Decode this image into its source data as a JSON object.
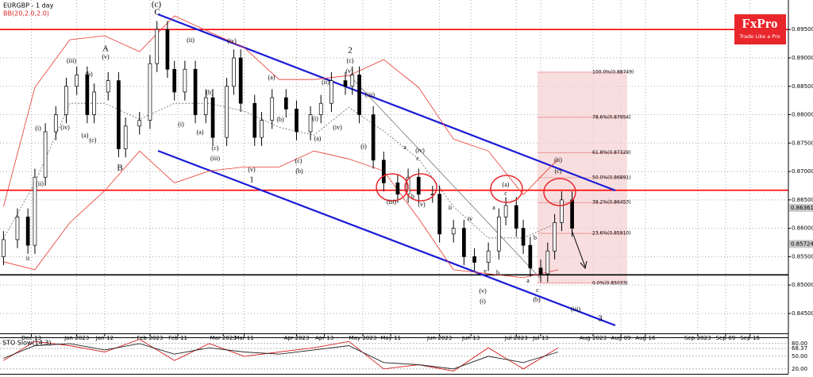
{
  "logo": {
    "brand": "FxPro",
    "tagline": "Trade Like a Pro"
  },
  "chart_data": [
    {
      "type": "candlestick",
      "title": "EURGBP - 1 day",
      "indicator": "BB(20,2.0,2.0)",
      "x": [
        1,
        5,
        8,
        10,
        13,
        16,
        19,
        22,
        25,
        27,
        31,
        34,
        36,
        40,
        43,
        45,
        48,
        50,
        53,
        56,
        59,
        61,
        65,
        67,
        69,
        73,
        75,
        78,
        82,
        85,
        89,
        92,
        95,
        99,
        101,
        103,
        107,
        110,
        114,
        117,
        120,
        124,
        126,
        130,
        133,
        136,
        140,
        143,
        145,
        148,
        150,
        152,
        155,
        157,
        159,
        161,
        164
      ],
      "open": [
        0.855,
        0.858,
        0.862,
        0.857,
        0.869,
        0.877,
        0.88,
        0.885,
        0.887,
        0.88,
        0.884,
        0.886,
        0.874,
        0.878,
        0.879,
        0.889,
        0.895,
        0.888,
        0.884,
        0.888,
        0.88,
        0.883,
        0.876,
        0.885,
        0.89,
        0.882,
        0.876,
        0.879,
        0.883,
        0.881,
        0.877,
        0.88,
        0.882,
        0.886,
        0.885,
        0.887,
        0.88,
        0.872,
        0.868,
        0.866,
        0.869,
        0.866,
        0.866,
        0.859,
        0.86,
        0.855,
        0.854,
        0.856,
        0.862,
        0.864,
        0.86,
        0.857,
        0.853,
        0.852,
        0.856,
        0.861,
        0.865
      ],
      "high": [
        0.8595,
        0.8635,
        0.8635,
        0.8705,
        0.8785,
        0.8815,
        0.8865,
        0.8885,
        0.8885,
        0.8855,
        0.8875,
        0.8875,
        0.8795,
        0.8805,
        0.8905,
        0.8965,
        0.8965,
        0.8895,
        0.8895,
        0.8895,
        0.8845,
        0.8845,
        0.8865,
        0.8915,
        0.8915,
        0.8835,
        0.8805,
        0.8845,
        0.8845,
        0.8825,
        0.8815,
        0.8835,
        0.8875,
        0.8875,
        0.8885,
        0.8885,
        0.8815,
        0.8735,
        0.8695,
        0.8705,
        0.8705,
        0.8675,
        0.8675,
        0.8615,
        0.8615,
        0.8565,
        0.8575,
        0.8635,
        0.8655,
        0.8655,
        0.8615,
        0.8585,
        0.8545,
        0.8575,
        0.8625,
        0.8665,
        0.8665
      ],
      "low": [
        0.8535,
        0.8565,
        0.8555,
        0.8555,
        0.8675,
        0.8755,
        0.8785,
        0.8835,
        0.8785,
        0.8785,
        0.8825,
        0.8725,
        0.8725,
        0.8765,
        0.8775,
        0.8875,
        0.8865,
        0.8825,
        0.8825,
        0.8785,
        0.8785,
        0.8745,
        0.8745,
        0.8835,
        0.8805,
        0.8745,
        0.8745,
        0.8775,
        0.8795,
        0.8755,
        0.8755,
        0.8785,
        0.8805,
        0.8835,
        0.8835,
        0.8785,
        0.8705,
        0.8665,
        0.8645,
        0.8645,
        0.8645,
        0.8645,
        0.8575,
        0.8575,
        0.8535,
        0.8525,
        0.8525,
        0.8545,
        0.8605,
        0.8585,
        0.8555,
        0.8515,
        0.8505,
        0.8505,
        0.8545,
        0.8595,
        0.8585
      ],
      "close": [
        0.858,
        0.862,
        0.857,
        0.869,
        0.877,
        0.88,
        0.885,
        0.887,
        0.88,
        0.884,
        0.886,
        0.874,
        0.878,
        0.879,
        0.889,
        0.895,
        0.888,
        0.884,
        0.888,
        0.88,
        0.883,
        0.876,
        0.885,
        0.89,
        0.882,
        0.876,
        0.879,
        0.883,
        0.881,
        0.877,
        0.88,
        0.882,
        0.886,
        0.885,
        0.887,
        0.88,
        0.872,
        0.868,
        0.866,
        0.869,
        0.866,
        0.866,
        0.859,
        0.86,
        0.855,
        0.854,
        0.856,
        0.862,
        0.864,
        0.86,
        0.857,
        0.853,
        0.852,
        0.856,
        0.861,
        0.865,
        0.86
      ],
      "bollinger": {
        "color": "#e8382f",
        "middle_color": "#666666",
        "x": [
          1,
          10,
          20,
          30,
          40,
          50,
          60,
          70,
          80,
          90,
          100,
          110,
          120,
          130,
          140,
          150,
          160
        ],
        "upper": [
          0.8638,
          0.8848,
          0.8932,
          0.8939,
          0.8911,
          0.8974,
          0.8946,
          0.8918,
          0.8862,
          0.8862,
          0.8869,
          0.8897,
          0.8848,
          0.8757,
          0.8736,
          0.8659,
          0.8722
        ],
        "middle": [
          0.8582,
          0.868,
          0.882,
          0.882,
          0.8792,
          0.882,
          0.882,
          0.8806,
          0.8778,
          0.8764,
          0.8813,
          0.8771,
          0.8722,
          0.8638,
          0.8583,
          0.8583,
          0.861
        ],
        "lower": [
          0.8541,
          0.8527,
          0.861,
          0.8666,
          0.8736,
          0.868,
          0.8701,
          0.8708,
          0.8708,
          0.8736,
          0.8722,
          0.8701,
          0.8617,
          0.8527,
          0.852,
          0.8513,
          0.8527
        ]
      },
      "levels": [
        {
          "value": 0.895,
          "color": "#ff0000"
        },
        {
          "value": 0.8667,
          "color": "#ff0000"
        },
        {
          "value": 0.8518,
          "color": "#000000"
        }
      ],
      "fib_levels": [
        {
          "value": 0.88749,
          "label": "100.0%(0.88749)"
        },
        {
          "value": 0.87954,
          "label": "78.6%(0.87954)"
        },
        {
          "value": 0.87329,
          "label": "61.8%(0.87329)"
        },
        {
          "value": 0.86891,
          "label": "50.0%(0.86891)"
        },
        {
          "value": 0.86453,
          "label": "38.2%(0.86453)"
        },
        {
          "value": 0.8591,
          "label": "23.6%(0.85910)"
        },
        {
          "value": 0.85033,
          "label": "0.0%(0.85033)"
        }
      ],
      "price_tags": [
        0.86361,
        0.85724
      ],
      "annotations": [
        "(c)",
        "C",
        "A",
        "B",
        "1",
        "2",
        "3",
        "(iii)",
        "(v)",
        "(iv)",
        "(i)",
        "(ii)",
        "(b)",
        "(a)",
        "(c)",
        "ii",
        "(ii)",
        "(iv)",
        "(i)",
        "(iii)",
        "(v)",
        "(a)",
        "(c)",
        "(b)",
        "(a)",
        "(b)",
        "(c)",
        "(b)",
        "(a)",
        "(i)",
        "(ii)",
        "(iv)",
        "(c)",
        "(v)",
        "(iii)",
        "(i)",
        "(iv)",
        "a",
        "c",
        "b",
        "(iii)",
        "(v)",
        "ii",
        "iv",
        "(a)",
        "c",
        "a",
        "b",
        "a",
        "c",
        "b",
        "(b)",
        "(c)",
        "(ii)",
        "(v)",
        "(i)",
        "(iii)",
        "v"
      ],
      "xlim": [
        0,
        226
      ],
      "ylim": [
        0.8415,
        0.9002
      ],
      "yticks": [
        {
          "value": 0.895,
          "label": "0.89500"
        },
        {
          "value": 0.89,
          "label": "0.89000"
        },
        {
          "value": 0.885,
          "label": "0.88500"
        },
        {
          "value": 0.88,
          "label": "0.88000"
        },
        {
          "value": 0.875,
          "label": "0.87500"
        },
        {
          "value": 0.87,
          "label": "0.87000"
        },
        {
          "value": 0.865,
          "label": "0.86500"
        },
        {
          "value": 0.86,
          "label": "0.86000"
        },
        {
          "value": 0.855,
          "label": "0.85500"
        },
        {
          "value": 0.85,
          "label": "0.85000"
        },
        {
          "value": 0.845,
          "label": "0.84500"
        }
      ],
      "xticks": [
        {
          "value": 9,
          "label": "Dec-13"
        },
        {
          "value": 22,
          "label": "Jan-2023"
        },
        {
          "value": 30,
          "label": "Jan-12"
        },
        {
          "value": 43,
          "label": "Feb-2023"
        },
        {
          "value": 51,
          "label": "Feb-11"
        },
        {
          "value": 64,
          "label": "Mar-2023"
        },
        {
          "value": 70,
          "label": "Mar-11"
        },
        {
          "value": 85,
          "label": "Apr-2023"
        },
        {
          "value": 93,
          "label": "Apr-13"
        },
        {
          "value": 104,
          "label": "May-2023"
        },
        {
          "value": 112,
          "label": "May-11"
        },
        {
          "value": 126,
          "label": "Jun-2023"
        },
        {
          "value": 135,
          "label": "Jun-13"
        },
        {
          "value": 148,
          "label": "Jul-2023"
        },
        {
          "value": 155,
          "label": "Jul-13"
        },
        {
          "value": 170,
          "label": "Aug-2023"
        },
        {
          "value": 178,
          "label": "Aug-09"
        },
        {
          "value": 185,
          "label": "Aug-16"
        },
        {
          "value": 200,
          "label": "Sep-2023"
        },
        {
          "value": 208,
          "label": "Sep-09"
        },
        {
          "value": 215,
          "label": "Sep-16"
        }
      ],
      "grid": true
    },
    {
      "type": "line",
      "title": "STO Slow(14,3)",
      "x": [
        1,
        10,
        20,
        30,
        40,
        50,
        60,
        70,
        80,
        90,
        100,
        110,
        120,
        130,
        140,
        150,
        160
      ],
      "series": [
        {
          "name": "%K",
          "color": "#d62020",
          "values": [
            40,
            85,
            75,
            60,
            90,
            40,
            80,
            50,
            60,
            70,
            85,
            20,
            30,
            15,
            70,
            20,
            70
          ]
        },
        {
          "name": "%D",
          "color": "#222222",
          "values": [
            45,
            75,
            80,
            65,
            80,
            55,
            70,
            60,
            55,
            65,
            75,
            35,
            30,
            20,
            50,
            35,
            60
          ]
        }
      ],
      "xlim": [
        0,
        226
      ],
      "ylim": [
        0,
        100
      ],
      "yticks": [
        {
          "value": 80,
          "label": "80.00"
        },
        {
          "value": 68.37,
          "label": "68.37"
        },
        {
          "value": 50,
          "label": "50.00"
        },
        {
          "value": 20,
          "label": "20.00"
        }
      ]
    }
  ]
}
